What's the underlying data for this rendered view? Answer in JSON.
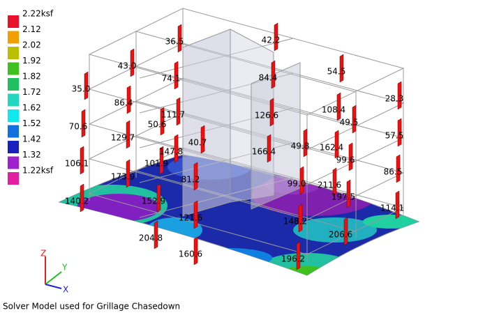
{
  "legend": [
    {
      "label": "2.22ksf",
      "color": "#e8102a"
    },
    {
      "label": "2.12",
      "color": "#f0a000"
    },
    {
      "label": "2.02",
      "color": "#b8c000"
    },
    {
      "label": "1.92",
      "color": "#40c020"
    },
    {
      "label": "1.82",
      "color": "#20c060"
    },
    {
      "label": "1.72",
      "color": "#20d8c0"
    },
    {
      "label": "1.62",
      "color": "#10e8f0"
    },
    {
      "label": "1.52",
      "color": "#1070e0"
    },
    {
      "label": "1.42",
      "color": "#1820c0"
    },
    {
      "label": "1.32",
      "color": "#a020d0"
    },
    {
      "label": "1.22ksf",
      "color": "#e020a0"
    }
  ],
  "column_labels": [
    "36.5",
    "42.2",
    "43.0",
    "74.1",
    "84.4",
    "54.5",
    "35.0",
    "86.4",
    "111.7",
    "126.6",
    "108.4",
    "28.3",
    "70.6",
    "129.7",
    "50.6",
    "40.7",
    "147.8",
    "166.4",
    "49.8",
    "162.4",
    "49.5",
    "57.5",
    "106.1",
    "101.9",
    "99.6",
    "86.5",
    "173.9",
    "81.2",
    "99.0",
    "211.6",
    "140.2",
    "152.9",
    "197.5",
    "114.1",
    "121.6",
    "148.2",
    "204.8",
    "206.6",
    "160.6",
    "196.2"
  ],
  "axes": {
    "z": "Z",
    "y": "Y",
    "x": "X"
  },
  "caption": "Solver Model used for Grillage Chasedown"
}
